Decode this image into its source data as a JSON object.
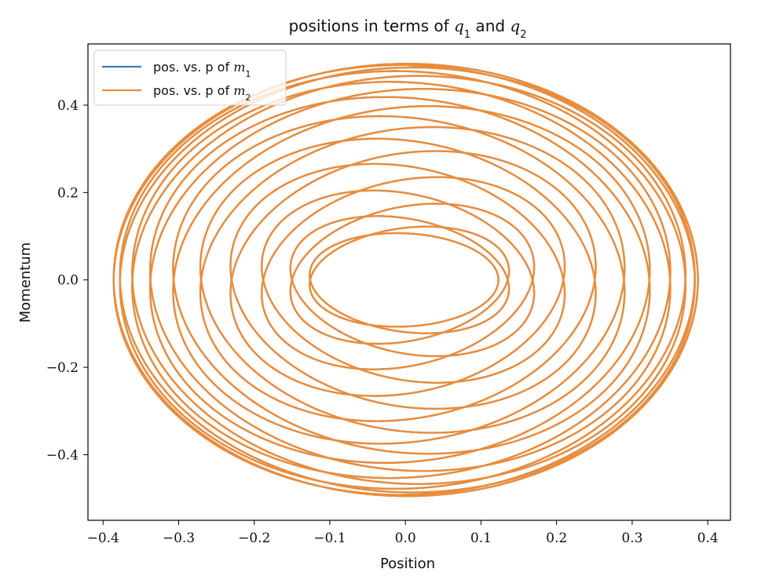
{
  "chart_data": {
    "type": "line",
    "title": {
      "prefix": "positions in terms of ",
      "var1": "q",
      "var1_sub": "1",
      "middle": " and ",
      "var2": "q",
      "var2_sub": "2"
    },
    "xlabel": "Position",
    "ylabel": "Momentum",
    "xlim": [
      -0.42,
      0.43
    ],
    "ylim": [
      -0.55,
      0.54
    ],
    "xticks": [
      -0.4,
      -0.3,
      -0.2,
      -0.1,
      0.0,
      0.1,
      0.2,
      0.3,
      0.4
    ],
    "xtick_labels": [
      "−0.4",
      "−0.3",
      "−0.2",
      "−0.1",
      "0.0",
      "0.1",
      "0.2",
      "0.3",
      "0.4"
    ],
    "yticks": [
      -0.4,
      -0.2,
      0.0,
      0.2,
      0.4
    ],
    "ytick_labels": [
      "−0.4",
      "−0.2",
      "0.0",
      "0.2",
      "0.4"
    ],
    "grid": false,
    "legend_position": "upper-left",
    "series": [
      {
        "name_prefix": "pos.  vs.  p of ",
        "name_var": "m",
        "name_sub": "1",
        "color": "#3f7bb8",
        "curve": {
          "x_components": [
            {
              "amp": 0.255,
              "omega": 1.0,
              "phase": 0.0
            },
            {
              "amp": 0.132,
              "omega": 1.05,
              "phase": 0.0
            }
          ],
          "p_components": [
            {
              "amp": -0.3,
              "omega": 1.0,
              "phase": 0.0
            },
            {
              "amp": -0.195,
              "omega": 1.05,
              "phase": 0.0
            }
          ],
          "t_end": 250
        }
      },
      {
        "name_prefix": "pos.  vs.  p of ",
        "name_var": "m",
        "name_sub": "2",
        "color": "#ee8c36",
        "curve": {
          "x_components": [
            {
              "amp": 0.255,
              "omega": 1.0,
              "phase": 0.0
            },
            {
              "amp": -0.132,
              "omega": 1.05,
              "phase": 0.0
            }
          ],
          "p_components": [
            {
              "amp": -0.3,
              "omega": 1.0,
              "phase": 0.0
            },
            {
              "amp": 0.195,
              "omega": 1.05,
              "phase": 0.0
            }
          ],
          "t_end": 250
        }
      }
    ]
  }
}
